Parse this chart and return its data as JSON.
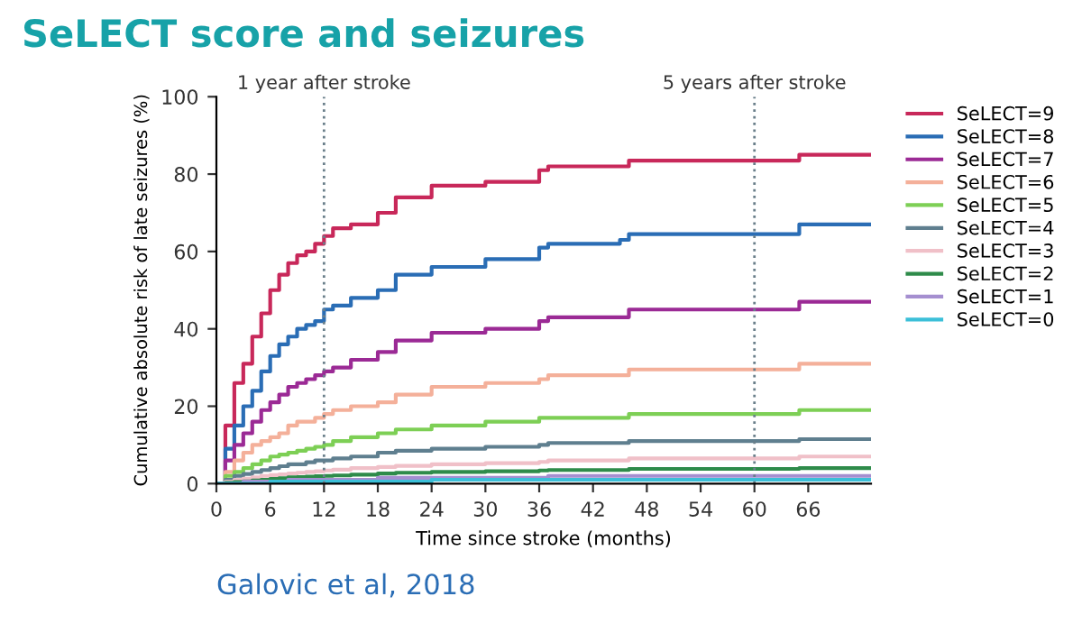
{
  "chart_data": {
    "type": "step",
    "title": "SeLECT score and seizures",
    "xlabel": "Time since stroke (months)",
    "ylabel": "Cumulative absolute risk of late seizures (%)",
    "x": [
      0,
      1,
      2,
      3,
      4,
      5,
      6,
      7,
      8,
      9,
      10,
      11,
      12,
      13,
      15,
      18,
      20,
      24,
      30,
      36,
      37,
      45,
      46,
      64,
      65,
      73
    ],
    "series": [
      {
        "name": "SeLECT=9",
        "color": "#c8285a",
        "values": [
          0,
          15,
          26,
          31,
          38,
          44,
          50,
          54,
          57,
          59,
          60,
          62,
          64,
          66,
          67,
          70,
          74,
          77,
          78,
          81,
          82,
          82,
          83.5,
          83.5,
          85,
          85
        ]
      },
      {
        "name": "SeLECT=8",
        "color": "#2a6db5",
        "values": [
          0,
          9,
          15,
          20,
          24,
          29,
          33,
          36,
          38,
          40,
          41,
          42,
          45,
          46,
          48,
          50,
          54,
          56,
          58,
          61,
          62,
          63,
          64.5,
          64.5,
          67,
          67
        ]
      },
      {
        "name": "SeLECT=7",
        "color": "#9b2a95",
        "values": [
          0,
          6,
          10,
          13,
          16,
          19,
          21,
          23,
          25,
          26,
          27,
          28,
          29,
          30,
          32,
          34,
          37,
          39,
          40,
          42,
          43,
          43,
          45,
          45,
          47,
          47
        ]
      },
      {
        "name": "SeLECT=6",
        "color": "#f4b09a",
        "values": [
          0,
          3,
          6,
          8,
          10,
          11,
          12,
          13,
          15,
          16,
          16,
          17,
          18,
          19,
          20,
          21,
          23,
          25,
          26,
          27,
          28,
          28,
          29.5,
          29.5,
          31,
          31
        ]
      },
      {
        "name": "SeLECT=5",
        "color": "#7dcf55",
        "values": [
          0,
          2,
          3,
          4,
          5,
          6,
          7,
          7.5,
          8,
          8.5,
          9,
          9.5,
          10,
          11,
          12,
          13,
          14,
          15,
          16,
          17,
          17,
          17,
          18,
          18,
          19,
          19
        ]
      },
      {
        "name": "SeLECT=4",
        "color": "#5f7f8f",
        "values": [
          0,
          1,
          2,
          2.5,
          3,
          3.5,
          4,
          4.5,
          5,
          5,
          5.5,
          6,
          6,
          6.5,
          7,
          8,
          8.5,
          9,
          9.5,
          10,
          10.5,
          10.5,
          11,
          11,
          11.5,
          11.5
        ]
      },
      {
        "name": "SeLECT=3",
        "color": "#f0c0c8",
        "values": [
          0,
          0.5,
          1,
          1.3,
          1.6,
          2,
          2.2,
          2.4,
          2.6,
          2.8,
          3,
          3.2,
          3.4,
          3.6,
          4,
          4.3,
          4.6,
          5,
          5.3,
          5.6,
          6,
          6,
          6.5,
          6.5,
          7,
          7
        ]
      },
      {
        "name": "SeLECT=2",
        "color": "#2e8b4a",
        "values": [
          0,
          0.2,
          0.4,
          0.6,
          0.8,
          1,
          1.2,
          1.4,
          1.6,
          1.7,
          1.8,
          1.9,
          2,
          2.1,
          2.3,
          2.6,
          2.8,
          3,
          3.2,
          3.4,
          3.5,
          3.5,
          3.8,
          3.8,
          4,
          4
        ]
      },
      {
        "name": "SeLECT=1",
        "color": "#a58fd0",
        "values": [
          0,
          0,
          0,
          0.5,
          0.5,
          0.5,
          0.5,
          0.5,
          1,
          1,
          1,
          1,
          1,
          1,
          1,
          1.5,
          1.5,
          1.5,
          1.5,
          1.5,
          2,
          2,
          2,
          2,
          2,
          2
        ]
      },
      {
        "name": "SeLECT=0",
        "color": "#3bbfd8",
        "values": [
          0,
          0,
          0,
          0,
          0,
          0,
          0.5,
          0.5,
          0.5,
          0.5,
          0.5,
          0.5,
          0.5,
          0.5,
          0.5,
          0.5,
          0.5,
          1,
          1,
          1,
          1,
          1,
          1,
          1,
          1,
          1
        ]
      }
    ],
    "xlim": [
      0,
      73
    ],
    "xticks": [
      0,
      6,
      12,
      18,
      24,
      30,
      36,
      42,
      48,
      54,
      60,
      66
    ],
    "ylim": [
      0,
      100
    ],
    "yticks": [
      0,
      20,
      40,
      60,
      80,
      100
    ],
    "ref_lines": [
      {
        "axis": "x",
        "value": 12,
        "label": "1 year after stroke",
        "color": "#6a7f8a",
        "line_style": "dotted"
      },
      {
        "axis": "x",
        "value": 60,
        "label": "5 years after stroke",
        "color": "#6a7f8a",
        "line_style": "dotted"
      }
    ],
    "annotations": [
      "Galovic et al, 2018"
    ],
    "legend": "right",
    "grid": false
  }
}
